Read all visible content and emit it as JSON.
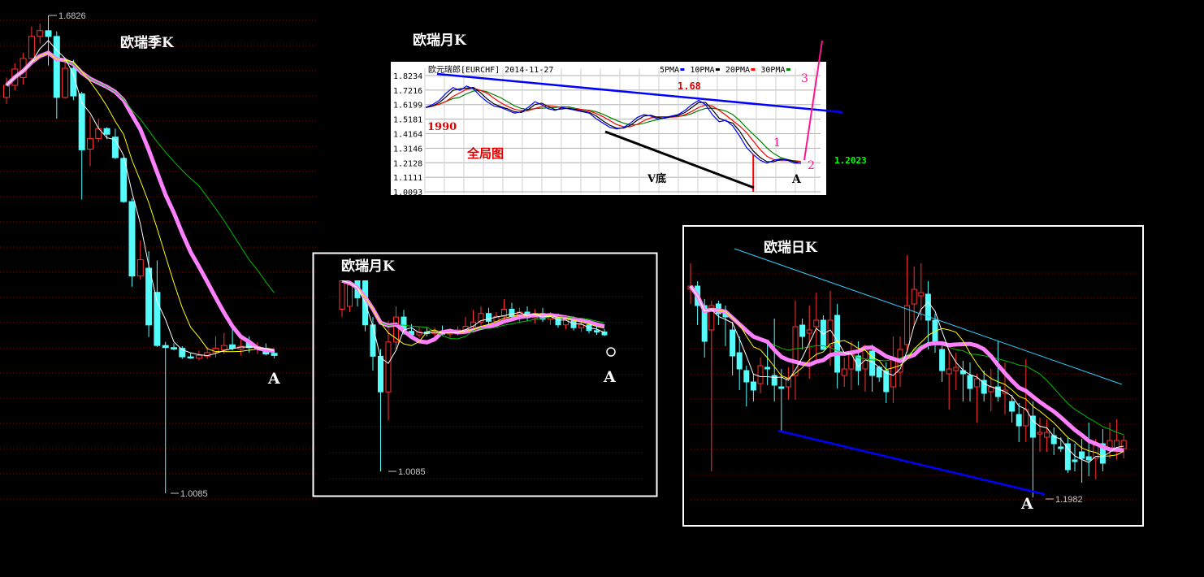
{
  "colors": {
    "up": "#ff3030",
    "down": "#54fcfc",
    "ma5": "#ffffff",
    "ma10": "#ffff00",
    "ma20": "#00c000",
    "ma_thick": "#ff80ff",
    "ma_long": "#33ccff",
    "grid": "#8a0000"
  },
  "chart_data": [
    {
      "id": "quarterly",
      "type": "candlestick",
      "title": "欧瑞季K",
      "annotations": {
        "high_label": "1.6826",
        "low_label": "1.0085",
        "point_label": "A"
      },
      "candles_ohlc": [
        [
          1.567,
          1.595,
          1.558,
          1.584
        ],
        [
          1.584,
          1.615,
          1.577,
          1.607
        ],
        [
          1.595,
          1.63,
          1.585,
          1.622
        ],
        [
          1.622,
          1.667,
          1.615,
          1.653
        ],
        [
          1.653,
          1.671,
          1.643,
          1.661
        ],
        [
          1.661,
          1.6826,
          1.612,
          1.653
        ],
        [
          1.653,
          1.66,
          1.537,
          1.567
        ],
        [
          1.567,
          1.622,
          1.565,
          1.608
        ],
        [
          1.608,
          1.62,
          1.563,
          1.569
        ],
        [
          1.572,
          1.575,
          1.423,
          1.493
        ],
        [
          1.494,
          1.541,
          1.47,
          1.509
        ],
        [
          1.509,
          1.537,
          1.504,
          1.523
        ],
        [
          1.523,
          1.525,
          1.508,
          1.515
        ],
        [
          1.511,
          1.523,
          1.48,
          1.482
        ],
        [
          1.481,
          1.483,
          1.418,
          1.42
        ],
        [
          1.42,
          1.425,
          1.3,
          1.315
        ],
        [
          1.315,
          1.365,
          1.31,
          1.338
        ],
        [
          1.326,
          1.35,
          1.229,
          1.246
        ],
        [
          1.292,
          1.337,
          1.215,
          1.217
        ],
        [
          1.217,
          1.222,
          1.0085,
          1.214
        ],
        [
          1.214,
          1.22,
          1.21,
          1.212
        ],
        [
          1.213,
          1.216,
          1.198,
          1.201
        ],
        [
          1.201,
          1.206,
          1.198,
          1.2
        ],
        [
          1.199,
          1.21,
          1.196,
          1.203
        ],
        [
          1.202,
          1.215,
          1.198,
          1.207
        ],
        [
          1.207,
          1.23,
          1.2,
          1.213
        ],
        [
          1.211,
          1.235,
          1.205,
          1.217
        ],
        [
          1.218,
          1.24,
          1.21,
          1.213
        ],
        [
          1.212,
          1.225,
          1.203,
          1.216
        ],
        [
          1.221,
          1.23,
          1.207,
          1.214
        ],
        [
          1.212,
          1.222,
          1.205,
          1.215
        ],
        [
          1.213,
          1.22,
          1.203,
          1.205
        ],
        [
          1.206,
          1.21,
          1.199,
          1.203
        ]
      ]
    },
    {
      "id": "overview",
      "type": "line",
      "title": "欧瑞月K",
      "header": "欧元瑞郎[EURCHF] 2014-11-27",
      "legend": [
        {
          "name": "5PMA",
          "color": "#0000ff"
        },
        {
          "name": "10PMA",
          "color": "#000000"
        },
        {
          "name": "20PMA",
          "color": "#ff0000"
        },
        {
          "name": "30PMA",
          "color": "#008000"
        }
      ],
      "y_ticks": [
        "1.8234",
        "1.7216",
        "1.6199",
        "1.5181",
        "1.4164",
        "1.3146",
        "1.2128",
        "1.1111",
        "1.0093"
      ],
      "ylim": [
        1.0093,
        1.8234
      ],
      "close": [
        1.6,
        1.62,
        1.65,
        1.7,
        1.74,
        1.72,
        1.75,
        1.73,
        1.68,
        1.64,
        1.61,
        1.6,
        1.58,
        1.56,
        1.57,
        1.6,
        1.64,
        1.62,
        1.59,
        1.58,
        1.6,
        1.59,
        1.58,
        1.57,
        1.56,
        1.52,
        1.49,
        1.46,
        1.45,
        1.46,
        1.49,
        1.53,
        1.55,
        1.54,
        1.52,
        1.53,
        1.54,
        1.55,
        1.58,
        1.62,
        1.65,
        1.62,
        1.55,
        1.5,
        1.51,
        1.47,
        1.4,
        1.32,
        1.27,
        1.23,
        1.21,
        1.23,
        1.24,
        1.23,
        1.21,
        1.21
      ],
      "spike_low": 1.0093,
      "annotations": {
        "start_year": "1990",
        "peak": "1.68",
        "global": "全局图",
        "v_bottom": "V底",
        "point_a": "A",
        "wave1": "1",
        "wave2": "2",
        "wave3": "3",
        "last": "1.2023"
      }
    },
    {
      "id": "monthly",
      "type": "candlestick",
      "title": "欧瑞月K",
      "annotations": {
        "low_label": "1.0085",
        "point_label": "A"
      },
      "candles_ohlc": [
        [
          1.236,
          1.276,
          1.225,
          1.276
        ],
        [
          1.24,
          1.276,
          1.232,
          1.27
        ],
        [
          1.276,
          1.276,
          1.24,
          1.252
        ],
        [
          1.276,
          1.276,
          1.205,
          1.214
        ],
        [
          1.214,
          1.225,
          1.15,
          1.17
        ],
        [
          1.17,
          1.18,
          1.0085,
          1.12
        ],
        [
          1.12,
          1.22,
          1.08,
          1.19
        ],
        [
          1.19,
          1.24,
          1.18,
          1.225
        ],
        [
          1.225,
          1.235,
          1.2,
          1.205
        ],
        [
          1.205,
          1.215,
          1.195,
          1.2
        ],
        [
          1.2,
          1.212,
          1.196,
          1.204
        ],
        [
          1.204,
          1.21,
          1.198,
          1.202
        ],
        [
          1.202,
          1.21,
          1.197,
          1.205
        ],
        [
          1.205,
          1.213,
          1.199,
          1.201
        ],
        [
          1.201,
          1.209,
          1.196,
          1.203
        ],
        [
          1.203,
          1.212,
          1.199,
          1.207
        ],
        [
          1.207,
          1.225,
          1.203,
          1.212
        ],
        [
          1.212,
          1.235,
          1.208,
          1.218
        ],
        [
          1.218,
          1.24,
          1.212,
          1.23
        ],
        [
          1.23,
          1.238,
          1.214,
          1.219
        ],
        [
          1.219,
          1.232,
          1.21,
          1.226
        ],
        [
          1.226,
          1.25,
          1.22,
          1.236
        ],
        [
          1.236,
          1.245,
          1.222,
          1.226
        ],
        [
          1.226,
          1.238,
          1.218,
          1.232
        ],
        [
          1.232,
          1.24,
          1.22,
          1.224
        ],
        [
          1.224,
          1.236,
          1.216,
          1.23
        ],
        [
          1.23,
          1.238,
          1.218,
          1.222
        ],
        [
          1.222,
          1.232,
          1.214,
          1.226
        ],
        [
          1.226,
          1.23,
          1.21,
          1.214
        ],
        [
          1.214,
          1.228,
          1.208,
          1.222
        ],
        [
          1.222,
          1.226,
          1.206,
          1.21
        ],
        [
          1.21,
          1.222,
          1.204,
          1.214
        ],
        [
          1.214,
          1.218,
          1.202,
          1.206
        ],
        [
          1.206,
          1.214,
          1.2,
          1.204
        ],
        [
          1.204,
          1.208,
          1.198,
          1.2
        ]
      ]
    },
    {
      "id": "daily",
      "type": "candlestick",
      "title": "欧瑞日K",
      "annotations": {
        "low_label": "1.1982",
        "point_label": "A"
      },
      "candles_ohlc": [
        [
          1.211,
          1.2126,
          1.2101,
          1.2112
        ],
        [
          1.2112,
          1.2115,
          1.2088,
          1.21
        ],
        [
          1.21,
          1.2104,
          1.2068,
          1.2078
        ],
        [
          1.2085,
          1.2103,
          1.1998,
          1.21
        ],
        [
          1.2101,
          1.2103,
          1.2088,
          1.2095
        ],
        [
          1.2096,
          1.21,
          1.2075,
          1.2093
        ],
        [
          1.2085,
          1.209,
          1.2057,
          1.2069
        ],
        [
          1.2071,
          1.2081,
          1.2048,
          1.2061
        ],
        [
          1.206,
          1.2063,
          1.2038,
          1.2053
        ],
        [
          1.2053,
          1.2058,
          1.2041,
          1.2048
        ],
        [
          1.2052,
          1.2068,
          1.2046,
          1.2063
        ],
        [
          1.2062,
          1.2076,
          1.2051,
          1.2061
        ],
        [
          1.2057,
          1.2092,
          1.2041,
          1.2051
        ],
        [
          1.205,
          1.2061,
          1.2023,
          1.2049
        ],
        [
          1.205,
          1.2062,
          1.2042,
          1.2055
        ],
        [
          1.2057,
          1.2103,
          1.2042,
          1.2087
        ],
        [
          1.2088,
          1.2092,
          1.2073,
          1.2081
        ],
        [
          1.2083,
          1.21,
          1.2055,
          1.2085
        ],
        [
          1.2087,
          1.2108,
          1.2065,
          1.2091
        ],
        [
          1.2091,
          1.2094,
          1.2073,
          1.2073
        ],
        [
          1.2075,
          1.2109,
          1.2063,
          1.2091
        ],
        [
          1.2094,
          1.2101,
          1.2049,
          1.2059
        ],
        [
          1.2057,
          1.2068,
          1.205,
          1.2061
        ],
        [
          1.2061,
          1.2078,
          1.2048,
          1.207
        ],
        [
          1.2069,
          1.2078,
          1.2051,
          1.206
        ],
        [
          1.2061,
          1.2076,
          1.2047,
          1.2075
        ],
        [
          1.2072,
          1.2076,
          1.2047,
          1.2057
        ],
        [
          1.2062,
          1.2063,
          1.2053,
          1.2056
        ],
        [
          1.206,
          1.2065,
          1.204,
          1.2047
        ],
        [
          1.205,
          1.2081,
          1.204,
          1.2068
        ],
        [
          1.2059,
          1.2081,
          1.205,
          1.2073
        ],
        [
          1.2076,
          1.2131,
          1.2071,
          1.21
        ],
        [
          1.2101,
          1.2124,
          1.2088,
          1.211
        ],
        [
          1.2106,
          1.2126,
          1.2091,
          1.2108
        ],
        [
          1.2107,
          1.2115,
          1.2073,
          1.2091
        ],
        [
          1.2091,
          1.2095,
          1.2071,
          1.2077
        ],
        [
          1.2073,
          1.2078,
          1.2053,
          1.206
        ],
        [
          1.2058,
          1.2073,
          1.2036,
          1.2061
        ],
        [
          1.206,
          1.2071,
          1.2048,
          1.2062
        ],
        [
          1.206,
          1.2066,
          1.2041,
          1.2058
        ],
        [
          1.2057,
          1.2065,
          1.2041,
          1.2049
        ],
        [
          1.205,
          1.2058,
          1.2028,
          1.2055
        ],
        [
          1.2054,
          1.206,
          1.2041,
          1.2046
        ],
        [
          1.2047,
          1.2061,
          1.2035,
          1.205
        ],
        [
          1.205,
          1.2078,
          1.2041,
          1.2044
        ],
        [
          1.2046,
          1.2065,
          1.2033,
          1.2048
        ],
        [
          1.2041,
          1.2045,
          1.2028,
          1.2035
        ],
        [
          1.2033,
          1.204,
          1.2016,
          1.2026
        ],
        [
          1.2026,
          1.2067,
          1.2016,
          1.2036
        ],
        [
          1.2032,
          1.2041,
          1.1982,
          1.2019
        ],
        [
          1.2021,
          1.2031,
          1.201,
          1.2022
        ],
        [
          1.2019,
          1.203,
          1.201,
          1.2022
        ],
        [
          1.202,
          1.2025,
          1.2008,
          1.2015
        ],
        [
          1.2013,
          1.2019,
          1.201,
          1.2012
        ],
        [
          1.2015,
          1.2019,
          1.1997,
          1.1999
        ],
        [
          1.2005,
          1.2015,
          1.1998,
          1.2004
        ],
        [
          1.201,
          1.2018,
          1.1991,
          1.2006
        ],
        [
          1.2007,
          1.2028,
          1.1995,
          1.2005
        ],
        [
          1.2006,
          1.2018,
          1.1993,
          1.2014
        ],
        [
          1.2015,
          1.2024,
          1.1998,
          1.2003
        ],
        [
          1.2011,
          1.2028,
          1.2006,
          1.2017
        ],
        [
          1.2012,
          1.203,
          1.2005,
          1.2017
        ],
        [
          1.2012,
          1.202,
          1.2006,
          1.2017
        ]
      ]
    }
  ]
}
